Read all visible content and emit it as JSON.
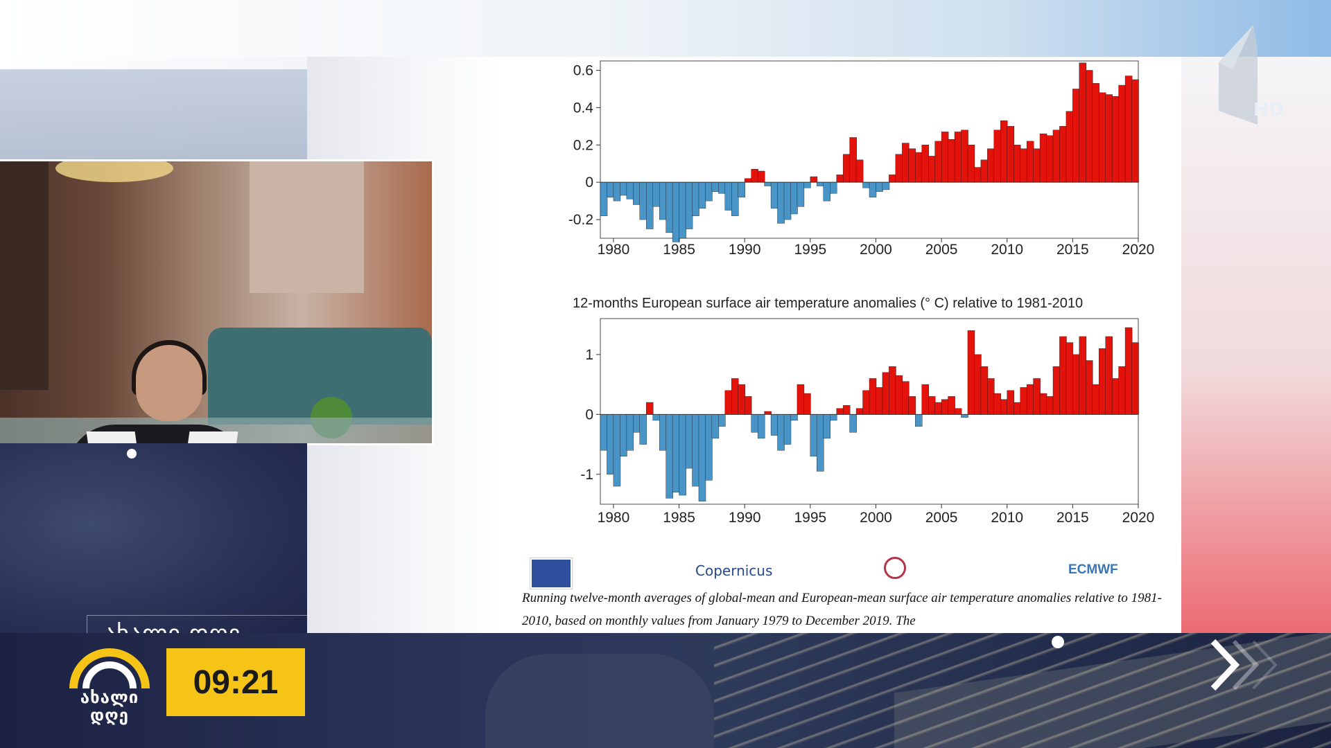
{
  "channel": {
    "logo_text_line1": "ახალი",
    "logo_text_line2": "დღე",
    "program_title": "ახალი დღე",
    "clock": "09:21",
    "hd_badge": "HD",
    "accent_yellow": "#f5c417"
  },
  "chart": {
    "caption": "Running twelve-month averages of global-mean and European-mean surface air temperature anomalies relative to 1981-2010, based on monthly values from January 1979 to December 2019. The",
    "chart2_title": "12-months  European surface air temperature anomalies (° C) relative to 1981-2010",
    "x_ticks": [
      "1980",
      "1985",
      "1990",
      "1995",
      "2000",
      "2005",
      "2010",
      "2015",
      "2020"
    ],
    "chart1_y_ticks": [
      "0.6",
      "0.4",
      "0.2",
      "0",
      "-0.2"
    ],
    "chart2_y_ticks": [
      "1",
      "0",
      "-1"
    ],
    "positive_color": "#e3120b",
    "negative_color": "#4a95c8"
  },
  "logos": {
    "copernicus": "Copernicus",
    "ecmwf": "ECMWF"
  },
  "chart_data": [
    {
      "type": "area",
      "title": "",
      "xlabel": "",
      "ylabel": "",
      "xlim": [
        1979,
        2020
      ],
      "ylim": [
        -0.3,
        0.65
      ],
      "x": [
        1979.0,
        1979.5,
        1980.0,
        1980.5,
        1981.0,
        1981.5,
        1982.0,
        1982.5,
        1983.0,
        1983.5,
        1984.0,
        1984.5,
        1985.0,
        1985.5,
        1986.0,
        1986.5,
        1987.0,
        1987.5,
        1988.0,
        1988.5,
        1989.0,
        1989.5,
        1990.0,
        1990.5,
        1991.0,
        1991.5,
        1992.0,
        1992.5,
        1993.0,
        1993.5,
        1994.0,
        1994.5,
        1995.0,
        1995.5,
        1996.0,
        1996.5,
        1997.0,
        1997.5,
        1998.0,
        1998.5,
        1999.0,
        1999.5,
        2000.0,
        2000.5,
        2001.0,
        2001.5,
        2002.0,
        2002.5,
        2003.0,
        2003.5,
        2004.0,
        2004.5,
        2005.0,
        2005.5,
        2006.0,
        2006.5,
        2007.0,
        2007.5,
        2008.0,
        2008.5,
        2009.0,
        2009.5,
        2010.0,
        2010.5,
        2011.0,
        2011.5,
        2012.0,
        2012.5,
        2013.0,
        2013.5,
        2014.0,
        2014.5,
        2015.0,
        2015.5,
        2016.0,
        2016.5,
        2017.0,
        2017.5,
        2018.0,
        2018.5,
        2019.0,
        2019.5
      ],
      "series": [
        {
          "values": [
            -0.18,
            -0.08,
            -0.1,
            -0.07,
            -0.09,
            -0.12,
            -0.2,
            -0.25,
            -0.13,
            -0.2,
            -0.27,
            -0.32,
            -0.3,
            -0.25,
            -0.18,
            -0.14,
            -0.1,
            -0.05,
            -0.06,
            -0.15,
            -0.18,
            -0.08,
            0.02,
            0.07,
            0.06,
            -0.02,
            -0.14,
            -0.22,
            -0.2,
            -0.17,
            -0.13,
            -0.03,
            0.03,
            -0.02,
            -0.1,
            -0.06,
            0.04,
            0.15,
            0.24,
            0.12,
            -0.03,
            -0.08,
            -0.05,
            -0.04,
            0.04,
            0.15,
            0.21,
            0.18,
            0.16,
            0.2,
            0.14,
            0.22,
            0.27,
            0.23,
            0.27,
            0.28,
            0.2,
            0.08,
            0.12,
            0.18,
            0.28,
            0.33,
            0.3,
            0.2,
            0.18,
            0.22,
            0.18,
            0.26,
            0.25,
            0.28,
            0.3,
            0.38,
            0.5,
            0.64,
            0.6,
            0.53,
            0.48,
            0.47,
            0.46,
            0.52,
            0.57,
            0.55
          ]
        }
      ]
    },
    {
      "type": "area",
      "title": "12-months  European surface air temperature anomalies (° C) relative to 1981-2010",
      "xlabel": "",
      "ylabel": "",
      "xlim": [
        1979,
        2020
      ],
      "ylim": [
        -1.5,
        1.6
      ],
      "x": [
        1979.0,
        1979.5,
        1980.0,
        1980.5,
        1981.0,
        1981.5,
        1982.0,
        1982.5,
        1983.0,
        1983.5,
        1984.0,
        1984.5,
        1985.0,
        1985.5,
        1986.0,
        1986.5,
        1987.0,
        1987.5,
        1988.0,
        1988.5,
        1989.0,
        1989.5,
        1990.0,
        1990.5,
        1991.0,
        1991.5,
        1992.0,
        1992.5,
        1993.0,
        1993.5,
        1994.0,
        1994.5,
        1995.0,
        1995.5,
        1996.0,
        1996.5,
        1997.0,
        1997.5,
        1998.0,
        1998.5,
        1999.0,
        1999.5,
        2000.0,
        2000.5,
        2001.0,
        2001.5,
        2002.0,
        2002.5,
        2003.0,
        2003.5,
        2004.0,
        2004.5,
        2005.0,
        2005.5,
        2006.0,
        2006.5,
        2007.0,
        2007.5,
        2008.0,
        2008.5,
        2009.0,
        2009.5,
        2010.0,
        2010.5,
        2011.0,
        2011.5,
        2012.0,
        2012.5,
        2013.0,
        2013.5,
        2014.0,
        2014.5,
        2015.0,
        2015.5,
        2016.0,
        2016.5,
        2017.0,
        2017.5,
        2018.0,
        2018.5,
        2019.0,
        2019.5
      ],
      "series": [
        {
          "values": [
            -0.6,
            -1.0,
            -1.2,
            -0.7,
            -0.6,
            -0.3,
            -0.5,
            0.2,
            -0.1,
            -0.6,
            -1.4,
            -1.3,
            -1.35,
            -0.9,
            -1.2,
            -1.45,
            -1.1,
            -0.4,
            -0.2,
            0.4,
            0.6,
            0.5,
            0.3,
            -0.3,
            -0.4,
            0.05,
            -0.35,
            -0.6,
            -0.5,
            -0.1,
            0.5,
            0.35,
            -0.7,
            -0.95,
            -0.4,
            -0.1,
            0.1,
            0.15,
            -0.3,
            0.1,
            0.4,
            0.6,
            0.45,
            0.7,
            0.8,
            0.65,
            0.55,
            0.3,
            -0.2,
            0.5,
            0.3,
            0.2,
            0.25,
            0.3,
            0.1,
            -0.05,
            1.4,
            1.0,
            0.8,
            0.6,
            0.35,
            0.25,
            0.4,
            0.2,
            0.45,
            0.5,
            0.6,
            0.35,
            0.3,
            0.8,
            1.3,
            1.2,
            1.0,
            1.3,
            0.9,
            0.5,
            1.1,
            1.3,
            0.6,
            0.8,
            1.45,
            1.2
          ]
        }
      ]
    }
  ]
}
